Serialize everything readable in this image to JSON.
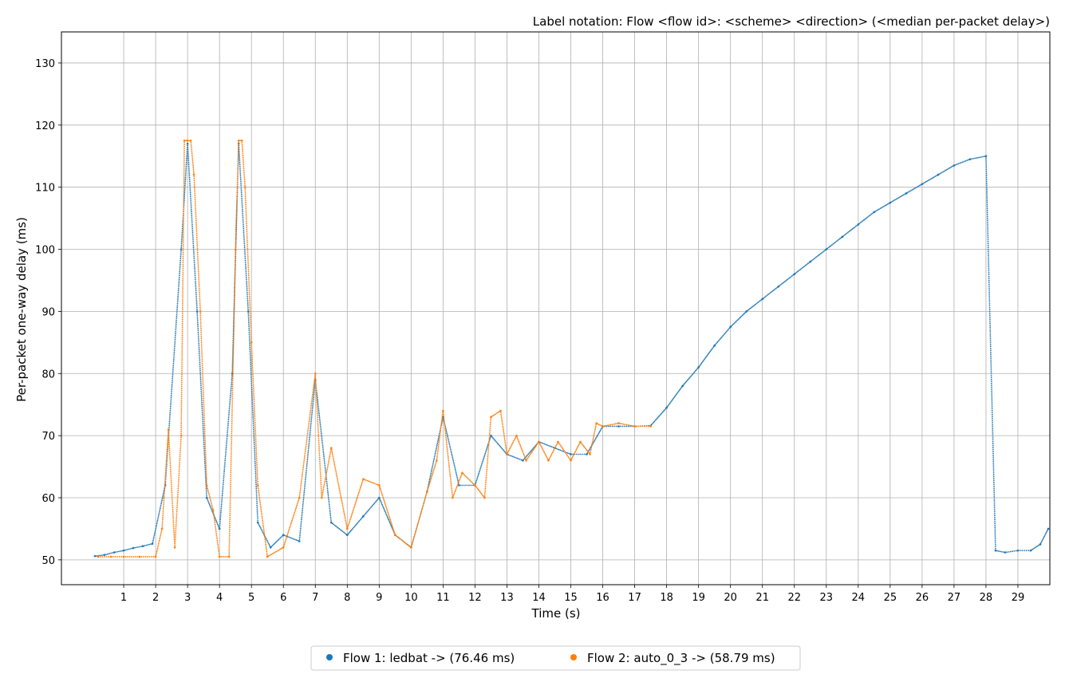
{
  "chart_data": {
    "type": "scatter",
    "title": "Label notation: Flow <flow id>: <scheme> <direction> (<median per-packet delay>)",
    "xlabel": "Time (s)",
    "ylabel": "Per-packet one-way delay (ms)",
    "xlim": [
      -0.95,
      30.0
    ],
    "ylim": [
      46,
      135
    ],
    "xticks": [
      1,
      2,
      3,
      4,
      5,
      6,
      7,
      8,
      9,
      10,
      11,
      12,
      13,
      14,
      15,
      16,
      17,
      18,
      19,
      20,
      21,
      22,
      23,
      24,
      25,
      26,
      27,
      28,
      29
    ],
    "yticks": [
      50,
      60,
      70,
      80,
      90,
      100,
      110,
      120,
      130
    ],
    "grid": true,
    "legend_position": "bottom-center",
    "series": [
      {
        "name": "Flow 1: ledbat -> (76.46 ms)",
        "color": "#1f77b4",
        "points": [
          [
            0.1,
            50.6
          ],
          [
            0.4,
            50.8
          ],
          [
            0.7,
            51.2
          ],
          [
            1.0,
            51.5
          ],
          [
            1.3,
            51.9
          ],
          [
            1.6,
            52.2
          ],
          [
            1.9,
            52.6
          ],
          [
            2.3,
            62
          ],
          [
            2.8,
            100
          ],
          [
            3.0,
            117
          ],
          [
            3.3,
            90
          ],
          [
            3.6,
            60
          ],
          [
            4.0,
            55
          ],
          [
            4.4,
            80
          ],
          [
            4.6,
            117
          ],
          [
            4.9,
            90
          ],
          [
            5.2,
            56
          ],
          [
            5.6,
            52
          ],
          [
            6.0,
            54
          ],
          [
            6.5,
            53
          ],
          [
            7.0,
            79
          ],
          [
            7.5,
            56
          ],
          [
            8.0,
            54
          ],
          [
            8.5,
            57
          ],
          [
            9.0,
            60
          ],
          [
            9.5,
            54
          ],
          [
            10.0,
            52
          ],
          [
            10.5,
            61
          ],
          [
            11.0,
            73
          ],
          [
            11.5,
            62
          ],
          [
            12.0,
            62
          ],
          [
            12.5,
            70
          ],
          [
            13.0,
            67
          ],
          [
            13.5,
            66
          ],
          [
            14.0,
            69
          ],
          [
            14.5,
            68
          ],
          [
            15.0,
            67
          ],
          [
            15.5,
            67
          ],
          [
            16.0,
            71.5
          ],
          [
            16.5,
            71.5
          ],
          [
            17.0,
            71.5
          ],
          [
            17.5,
            71.6
          ],
          [
            18.0,
            74.5
          ],
          [
            18.5,
            78.0
          ],
          [
            19.0,
            81.0
          ],
          [
            19.5,
            84.5
          ],
          [
            20.0,
            87.5
          ],
          [
            20.5,
            90.0
          ],
          [
            21.0,
            92.0
          ],
          [
            21.5,
            94.0
          ],
          [
            22.0,
            96.0
          ],
          [
            22.5,
            98.0
          ],
          [
            23.0,
            100.0
          ],
          [
            23.5,
            102.0
          ],
          [
            24.0,
            104.0
          ],
          [
            24.5,
            106.0
          ],
          [
            25.0,
            107.5
          ],
          [
            25.5,
            109.0
          ],
          [
            26.0,
            110.5
          ],
          [
            26.5,
            112.0
          ],
          [
            27.0,
            113.5
          ],
          [
            27.5,
            114.5
          ],
          [
            28.0,
            115.0
          ],
          [
            28.3,
            51.5
          ],
          [
            28.6,
            51.2
          ],
          [
            29.0,
            51.5
          ],
          [
            29.4,
            51.5
          ],
          [
            29.7,
            52.5
          ],
          [
            29.95,
            55.0
          ]
        ]
      },
      {
        "name": "Flow 2: auto_0_3 -> (58.79 ms)",
        "color": "#ff7f0e",
        "points": [
          [
            0.2,
            50.5
          ],
          [
            0.6,
            50.5
          ],
          [
            1.0,
            50.5
          ],
          [
            1.5,
            50.5
          ],
          [
            2.0,
            50.5
          ],
          [
            2.2,
            55
          ],
          [
            2.4,
            71
          ],
          [
            2.6,
            52
          ],
          [
            2.8,
            70
          ],
          [
            2.9,
            117.5
          ],
          [
            3.0,
            117.5
          ],
          [
            3.1,
            117.5
          ],
          [
            3.2,
            112
          ],
          [
            3.4,
            90
          ],
          [
            3.6,
            62
          ],
          [
            3.8,
            58
          ],
          [
            4.0,
            50.5
          ],
          [
            4.3,
            50.5
          ],
          [
            4.5,
            100
          ],
          [
            4.6,
            117.5
          ],
          [
            4.7,
            117.5
          ],
          [
            4.8,
            110
          ],
          [
            5.0,
            85
          ],
          [
            5.2,
            62
          ],
          [
            5.5,
            50.5
          ],
          [
            6.0,
            52
          ],
          [
            6.5,
            60
          ],
          [
            7.0,
            80
          ],
          [
            7.2,
            60
          ],
          [
            7.5,
            68
          ],
          [
            8.0,
            55
          ],
          [
            8.5,
            63
          ],
          [
            9.0,
            62
          ],
          [
            9.5,
            54
          ],
          [
            10.0,
            52
          ],
          [
            10.5,
            61
          ],
          [
            10.8,
            66
          ],
          [
            11.0,
            74
          ],
          [
            11.3,
            60
          ],
          [
            11.6,
            64
          ],
          [
            12.0,
            62
          ],
          [
            12.3,
            60
          ],
          [
            12.5,
            73
          ],
          [
            12.8,
            74
          ],
          [
            13.0,
            67
          ],
          [
            13.3,
            70
          ],
          [
            13.6,
            66
          ],
          [
            14.0,
            69
          ],
          [
            14.3,
            66
          ],
          [
            14.6,
            69
          ],
          [
            15.0,
            66
          ],
          [
            15.3,
            69
          ],
          [
            15.6,
            67
          ],
          [
            15.8,
            72
          ],
          [
            16.0,
            71.5
          ],
          [
            16.5,
            72
          ],
          [
            17.0,
            71.5
          ],
          [
            17.5,
            71.5
          ]
        ]
      }
    ]
  }
}
